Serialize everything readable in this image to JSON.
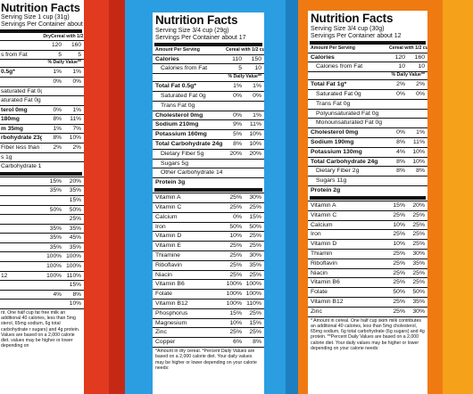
{
  "left": {
    "title": "Nutrition Facts",
    "serving": "Serving Size 1 cup (31g)",
    "servings": "Servings Per Container about 11",
    "col_dry": "Dry",
    "col_milk": "Cereal with 1/2 cup vitamins A & D fat free milk",
    "rows": [
      {
        "l": "",
        "a": "120",
        "b": "160",
        "c": ""
      },
      {
        "l": "s from Fat",
        "a": "5",
        "b": "5",
        "c": ""
      },
      {
        "l": "% Daily Value**",
        "a": "",
        "b": "",
        "c": "sub"
      },
      {
        "l": "0.5g*",
        "a": "1%",
        "b": "1%",
        "c": "b"
      },
      {
        "l": "",
        "a": "0%",
        "b": "0%",
        "c": ""
      },
      {
        "l": "saturated Fat 0g",
        "a": "",
        "b": "",
        "c": ""
      },
      {
        "l": "aturated Fat 0g",
        "a": "",
        "b": "",
        "c": ""
      },
      {
        "l": "terol 0mg",
        "a": "0%",
        "b": "1%",
        "c": "b"
      },
      {
        "l": "180mg",
        "a": "8%",
        "b": "11%",
        "c": "b"
      },
      {
        "l": "m 35mg",
        "a": "1%",
        "b": "7%",
        "c": "b"
      },
      {
        "l": "rbohydrate 23g",
        "a": "8%",
        "b": "10%",
        "c": "b"
      },
      {
        "l": "Fiber less than 1g",
        "a": "2%",
        "b": "2%",
        "c": ""
      },
      {
        "l": "s 1g",
        "a": "",
        "b": "",
        "c": ""
      },
      {
        "l": "Carbohydrate 19g",
        "a": "",
        "b": "",
        "c": ""
      },
      {
        "l": "",
        "a": "",
        "b": "",
        "c": "thick"
      },
      {
        "l": "",
        "a": "15%",
        "b": "20%",
        "c": ""
      },
      {
        "l": "",
        "a": "35%",
        "b": "35%",
        "c": ""
      },
      {
        "l": "",
        "a": "",
        "b": "15%",
        "c": ""
      },
      {
        "l": "",
        "a": "50%",
        "b": "50%",
        "c": ""
      },
      {
        "l": "",
        "a": "",
        "b": "25%",
        "c": ""
      },
      {
        "l": "",
        "a": "35%",
        "b": "35%",
        "c": ""
      },
      {
        "l": "",
        "a": "35%",
        "b": "45%",
        "c": ""
      },
      {
        "l": "",
        "a": "35%",
        "b": "35%",
        "c": ""
      },
      {
        "l": "",
        "a": "100%",
        "b": "100%",
        "c": ""
      },
      {
        "l": "",
        "a": "100%",
        "b": "100%",
        "c": ""
      },
      {
        "l": "12",
        "a": "100%",
        "b": "110%",
        "c": ""
      },
      {
        "l": "",
        "a": "",
        "b": "15%",
        "c": ""
      },
      {
        "l": "",
        "a": "4%",
        "b": "8%",
        "c": ""
      },
      {
        "l": "",
        "a": "",
        "b": "10%",
        "c": ""
      }
    ],
    "foot": "nt. One half cup fat free milk an additional 40 calories, less than 5mg sterol, 65mg sodium, 6g total carbohydrate r sugars) and 4g protein. Values are based on a 2,000 calorie diet. values may be higher or lower depending on"
  },
  "middle": {
    "title": "Nutrition Facts",
    "serving": "Serving Size 3/4 cup (29g)",
    "servings": "Servings Per Container about 17",
    "col_a": "Amount Per Serving",
    "col_milk": "Cereal with 1/2 cup skim milk",
    "rows": [
      {
        "l": "Calories",
        "a": "110",
        "b": "150",
        "c": "b"
      },
      {
        "l": "Calories from Fat",
        "a": "5",
        "b": "10",
        "c": "ind"
      },
      {
        "l": "% Daily Value**",
        "a": "",
        "b": "",
        "c": "sub"
      },
      {
        "l": "Total Fat 0.5g*",
        "a": "1%",
        "b": "1%",
        "c": "b"
      },
      {
        "l": "Saturated Fat 0g",
        "a": "0%",
        "b": "0%",
        "c": "ind"
      },
      {
        "l": "Trans Fat 0g",
        "a": "",
        "b": "",
        "c": "ind"
      },
      {
        "l": "Cholesterol 0mg",
        "a": "0%",
        "b": "1%",
        "c": "b"
      },
      {
        "l": "Sodium 210mg",
        "a": "9%",
        "b": "11%",
        "c": "b"
      },
      {
        "l": "Potassium 160mg",
        "a": "5%",
        "b": "10%",
        "c": "b"
      },
      {
        "l": "Total Carbohydrate 24g",
        "a": "8%",
        "b": "10%",
        "c": "b"
      },
      {
        "l": "Dietary Fiber 5g",
        "a": "20%",
        "b": "20%",
        "c": "ind"
      },
      {
        "l": "Sugars 5g",
        "a": "",
        "b": "",
        "c": "ind"
      },
      {
        "l": "Other Carbohydrate 14g",
        "a": "",
        "b": "",
        "c": "ind"
      },
      {
        "l": "Protein 3g",
        "a": "",
        "b": "",
        "c": "b"
      },
      {
        "l": "",
        "a": "",
        "b": "",
        "c": "thick"
      },
      {
        "l": "Vitamin A",
        "a": "25%",
        "b": "30%",
        "c": ""
      },
      {
        "l": "Vitamin C",
        "a": "25%",
        "b": "25%",
        "c": ""
      },
      {
        "l": "Calcium",
        "a": "0%",
        "b": "15%",
        "c": ""
      },
      {
        "l": "Iron",
        "a": "50%",
        "b": "50%",
        "c": ""
      },
      {
        "l": "Vitamin D",
        "a": "10%",
        "b": "25%",
        "c": ""
      },
      {
        "l": "Vitamin E",
        "a": "25%",
        "b": "25%",
        "c": ""
      },
      {
        "l": "Thiamine",
        "a": "25%",
        "b": "30%",
        "c": ""
      },
      {
        "l": "Riboflavin",
        "a": "25%",
        "b": "35%",
        "c": ""
      },
      {
        "l": "Niacin",
        "a": "25%",
        "b": "25%",
        "c": ""
      },
      {
        "l": "Vitamin B6",
        "a": "100%",
        "b": "100%",
        "c": ""
      },
      {
        "l": "Folate",
        "a": "100%",
        "b": "100%",
        "c": ""
      },
      {
        "l": "Vitamin B12",
        "a": "100%",
        "b": "110%",
        "c": ""
      },
      {
        "l": "Phosphorus",
        "a": "15%",
        "b": "25%",
        "c": ""
      },
      {
        "l": "Magnesium",
        "a": "10%",
        "b": "15%",
        "c": ""
      },
      {
        "l": "Zinc",
        "a": "25%",
        "b": "25%",
        "c": ""
      },
      {
        "l": "Copper",
        "a": "6%",
        "b": "8%",
        "c": ""
      }
    ],
    "foot": "*Amount in dry cereal. *Percent Daily Values are based on a 2,000 calorie diet. Your daily values may be higher or lower depending on your calorie needs:"
  },
  "right": {
    "title": "Nutrition Facts",
    "serving": "Serving Size 3/4 cup (30g)",
    "servings": "Servings Per Container about 12",
    "col_a": "Amount Per Serving",
    "col_milk": "Cereal with 1/2 cup skim milk",
    "rows": [
      {
        "l": "Calories",
        "a": "120",
        "b": "160",
        "c": "b"
      },
      {
        "l": "Calories from Fat",
        "a": "10",
        "b": "10",
        "c": "ind"
      },
      {
        "l": "% Daily Value**",
        "a": "",
        "b": "",
        "c": "sub"
      },
      {
        "l": "Total Fat 1g*",
        "a": "2%",
        "b": "2%",
        "c": "b"
      },
      {
        "l": "Saturated Fat 0g",
        "a": "0%",
        "b": "0%",
        "c": "ind"
      },
      {
        "l": "Trans Fat 0g",
        "a": "",
        "b": "",
        "c": "ind"
      },
      {
        "l": "Polyunsaturated Fat 0g",
        "a": "",
        "b": "",
        "c": "ind"
      },
      {
        "l": "Monounsaturated Fat 0g",
        "a": "",
        "b": "",
        "c": "ind"
      },
      {
        "l": "Cholesterol 0mg",
        "a": "0%",
        "b": "1%",
        "c": "b"
      },
      {
        "l": "Sodium 190mg",
        "a": "8%",
        "b": "11%",
        "c": "b"
      },
      {
        "l": "Potassium 130mg",
        "a": "4%",
        "b": "10%",
        "c": "b"
      },
      {
        "l": "Total Carbohydrate 24g",
        "a": "8%",
        "b": "10%",
        "c": "b"
      },
      {
        "l": "Dietary Fiber 2g",
        "a": "8%",
        "b": "8%",
        "c": "ind"
      },
      {
        "l": "Sugars 11g",
        "a": "",
        "b": "",
        "c": "ind"
      },
      {
        "l": "Protein 2g",
        "a": "",
        "b": "",
        "c": "b"
      },
      {
        "l": "",
        "a": "",
        "b": "",
        "c": "thick"
      },
      {
        "l": "Vitamin A",
        "a": "15%",
        "b": "20%",
        "c": ""
      },
      {
        "l": "Vitamin C",
        "a": "25%",
        "b": "25%",
        "c": ""
      },
      {
        "l": "Calcium",
        "a": "10%",
        "b": "25%",
        "c": ""
      },
      {
        "l": "Iron",
        "a": "25%",
        "b": "25%",
        "c": ""
      },
      {
        "l": "Vitamin D",
        "a": "10%",
        "b": "25%",
        "c": ""
      },
      {
        "l": "Thiamin",
        "a": "25%",
        "b": "30%",
        "c": ""
      },
      {
        "l": "Riboflavin",
        "a": "25%",
        "b": "35%",
        "c": ""
      },
      {
        "l": "Niacin",
        "a": "25%",
        "b": "25%",
        "c": ""
      },
      {
        "l": "Vitamin B6",
        "a": "25%",
        "b": "25%",
        "c": ""
      },
      {
        "l": "Folate",
        "a": "50%",
        "b": "50%",
        "c": ""
      },
      {
        "l": "Vitamin B12",
        "a": "25%",
        "b": "35%",
        "c": ""
      },
      {
        "l": "Zinc",
        "a": "25%",
        "b": "30%",
        "c": ""
      }
    ],
    "foot": "* Amount in cereal. One half cup skim milk contributes an additional 40 calories, less than 5mg cholesterol, 65mg sodium, 6g total carbohydrate (6g sugars) and 4g protein. **Percent Daily Values are based on a 2,000 calorie diet. Your daily values may be higher or lower depending on your calorie needs:"
  },
  "colors": {
    "red": "#e13a1f",
    "blue": "#2a9ee0",
    "orange": "#f07a12"
  }
}
